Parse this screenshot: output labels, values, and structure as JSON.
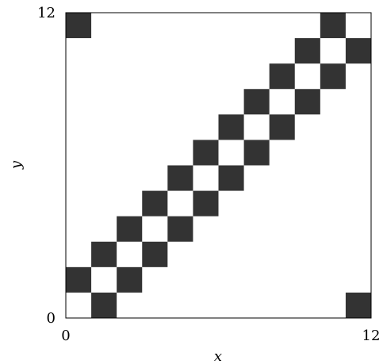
{
  "chart_data": {
    "type": "heatmap",
    "title": "",
    "xlabel": "x",
    "ylabel": "y",
    "xlim": [
      0,
      12
    ],
    "ylim": [
      0,
      12
    ],
    "x_ticks": [
      "0",
      "12"
    ],
    "y_ticks": [
      "0",
      "12"
    ],
    "grid": false,
    "cell_color": "#333333",
    "filled_cells": [
      [
        0,
        11
      ],
      [
        1,
        0
      ],
      [
        0,
        1
      ],
      [
        2,
        1
      ],
      [
        1,
        2
      ],
      [
        3,
        2
      ],
      [
        2,
        3
      ],
      [
        4,
        3
      ],
      [
        3,
        4
      ],
      [
        5,
        4
      ],
      [
        4,
        5
      ],
      [
        6,
        5
      ],
      [
        5,
        6
      ],
      [
        7,
        6
      ],
      [
        6,
        7
      ],
      [
        8,
        7
      ],
      [
        7,
        8
      ],
      [
        9,
        8
      ],
      [
        8,
        9
      ],
      [
        10,
        9
      ],
      [
        9,
        10
      ],
      [
        11,
        10
      ],
      [
        10,
        11
      ],
      [
        11,
        0
      ]
    ]
  }
}
